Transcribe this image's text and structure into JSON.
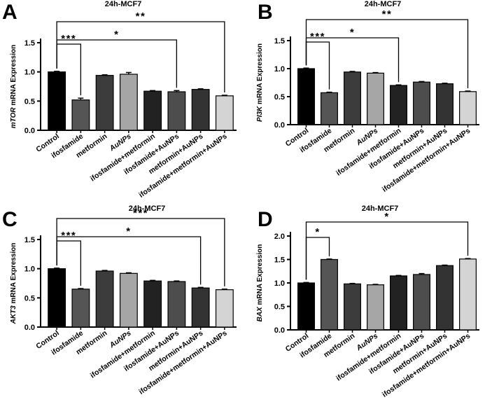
{
  "chart_data": [
    {
      "type": "bar",
      "panel": "A",
      "title": "24h-MCF7",
      "ylabel_gene": "mTOR",
      "ylabel_suffix": " mRNA Expression",
      "ylim": [
        0,
        1.5
      ],
      "yticks": [
        "0.0",
        "0.5",
        "1.0",
        "1.5"
      ],
      "categories": [
        "Control",
        "ifosfamide",
        "metformin",
        "AuNPs",
        "ifosfamide+metformin",
        "ifosfamide+AuNPs",
        "metformin+AuNPs",
        "ifosfamide+metformin+AuNPs"
      ],
      "values": [
        1.0,
        0.52,
        0.94,
        0.96,
        0.67,
        0.66,
        0.7,
        0.59
      ],
      "errors": [
        0.01,
        0.03,
        0.01,
        0.03,
        0.01,
        0.02,
        0.01,
        0.01
      ],
      "significance": [
        {
          "from": 0,
          "to": 1,
          "label": "***"
        },
        {
          "from": 0,
          "to": 5,
          "label": "*"
        },
        {
          "from": 0,
          "to": 7,
          "label": "**"
        }
      ]
    },
    {
      "type": "bar",
      "panel": "B",
      "title": "24h-MCF7",
      "ylabel_gene": "PI3K",
      "ylabel_suffix": " mRNA Expression",
      "ylim": [
        0,
        1.5
      ],
      "yticks": [
        "0.0",
        "0.5",
        "1.0",
        "1.5"
      ],
      "categories": [
        "Control",
        "ifosfamide",
        "metformin",
        "AuNPs",
        "ifosfamide+metformin",
        "ifosfamide+AuNPs",
        "metformin+AuNPs",
        "ifosfamide+metformin+AuNPs"
      ],
      "values": [
        1.0,
        0.57,
        0.94,
        0.92,
        0.7,
        0.76,
        0.73,
        0.59
      ],
      "errors": [
        0.01,
        0.01,
        0.01,
        0.01,
        0.01,
        0.01,
        0.01,
        0.01
      ],
      "significance": [
        {
          "from": 0,
          "to": 1,
          "label": "***"
        },
        {
          "from": 0,
          "to": 4,
          "label": "*"
        },
        {
          "from": 0,
          "to": 7,
          "label": "**"
        }
      ]
    },
    {
      "type": "bar",
      "panel": "C",
      "title": "24h-MCF7",
      "ylabel_gene": "AKT3",
      "ylabel_suffix": " mRNA Expression",
      "ylim": [
        0,
        1.5
      ],
      "yticks": [
        "0.0",
        "0.5",
        "1.0",
        "1.5"
      ],
      "categories": [
        "Control",
        "ifosfamide",
        "metformin",
        "AuNPs",
        "ifosfamide+metformin",
        "ifosfamide+AuNPs",
        "metformin+AuNPs",
        "ifosfamide+metformin+AuNPs"
      ],
      "values": [
        1.0,
        0.65,
        0.96,
        0.92,
        0.79,
        0.78,
        0.67,
        0.64
      ],
      "errors": [
        0.01,
        0.01,
        0.01,
        0.01,
        0.01,
        0.01,
        0.01,
        0.01
      ],
      "significance": [
        {
          "from": 0,
          "to": 1,
          "label": "***"
        },
        {
          "from": 0,
          "to": 6,
          "label": "*"
        },
        {
          "from": 0,
          "to": 7,
          "label": "***"
        }
      ]
    },
    {
      "type": "bar",
      "panel": "D",
      "title": "24h-MCF7",
      "ylabel_gene": "BAX",
      "ylabel_suffix": " mRNA Expression",
      "ylim": [
        0,
        2.0
      ],
      "yticks": [
        "0.0",
        "0.5",
        "1.0",
        "1.5",
        "2.0"
      ],
      "categories": [
        "Control",
        "ifosfamide",
        "metformin",
        "AuNPs",
        "ifosfamide+metformin",
        "ifosfamide+AuNPs",
        "metformin+AuNPs",
        "ifosfamide+metformin+AuNPs"
      ],
      "values": [
        1.0,
        1.5,
        0.98,
        0.96,
        1.15,
        1.18,
        1.37,
        1.51
      ],
      "errors": [
        0.01,
        0.01,
        0.01,
        0.01,
        0.01,
        0.02,
        0.01,
        0.01
      ],
      "significance": [
        {
          "from": 0,
          "to": 1,
          "label": "*"
        },
        {
          "from": 0,
          "to": 7,
          "label": "*"
        }
      ]
    }
  ],
  "colors": {
    "bars": [
      "#000000",
      "#555555",
      "#3c3c3c",
      "#a6a6a6",
      "#222222",
      "#4d4d4d",
      "#333333",
      "#d4d4d4"
    ],
    "axis": "#000000"
  }
}
